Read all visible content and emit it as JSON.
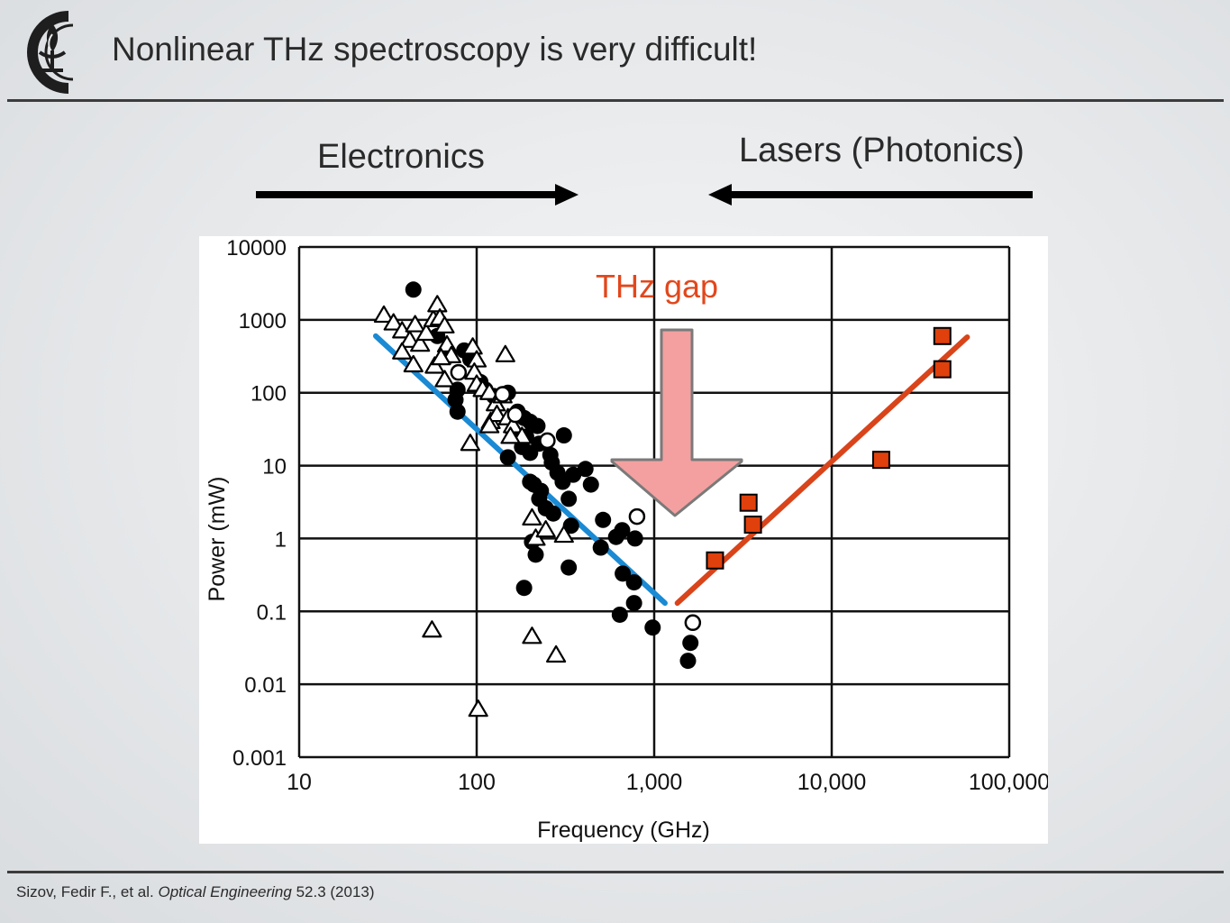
{
  "slide": {
    "title": "Nonlinear THz spectroscopy is very difficult!",
    "electronics_label": "Electronics",
    "lasers_label": "Lasers (Photonics)",
    "citation": {
      "authors": "Sizov, Fedir F., et al.",
      "journal": "Optical Engineering",
      "volume_year": "52.3 (2013)"
    },
    "logo_icon": "flame-c-logo-icon"
  },
  "colors": {
    "text": "#2a2a2a",
    "electronics_fit": "#1a8ad4",
    "photonics_fit": "#d9441a",
    "laser_marker": "#e0400c",
    "thz_gap_text": "#e2471c",
    "gap_arrow_fill": "#f4a0a0"
  },
  "chart_data": {
    "type": "scatter",
    "xlabel": "Frequency (GHz)",
    "ylabel": "Power (mW)",
    "x_scale": "log",
    "y_scale": "log",
    "xlim": [
      10,
      100000
    ],
    "ylim": [
      0.001,
      10000
    ],
    "grid": true,
    "x_tick_labels": [
      "10",
      "100",
      "1,000",
      "10,000",
      "100,000"
    ],
    "y_tick_labels": [
      "0.001",
      "0.01",
      "0.1",
      "1",
      "10",
      "100",
      "1000",
      "10000"
    ],
    "annotation": {
      "text": "THz gap",
      "arrow_points_to_frequency": 1300
    },
    "series": [
      {
        "marker": "filled-circle",
        "points": [
          [
            44,
            2600
          ],
          [
            60,
            600
          ],
          [
            70,
            320
          ],
          [
            85,
            380
          ],
          [
            92,
            290
          ],
          [
            78,
            110
          ],
          [
            76,
            80
          ],
          [
            78,
            55
          ],
          [
            105,
            140
          ],
          [
            112,
            110
          ],
          [
            125,
            90
          ],
          [
            150,
            100
          ],
          [
            170,
            55
          ],
          [
            185,
            45
          ],
          [
            200,
            40
          ],
          [
            220,
            35
          ],
          [
            160,
            30
          ],
          [
            190,
            25
          ],
          [
            225,
            20
          ],
          [
            180,
            18
          ],
          [
            200,
            15
          ],
          [
            150,
            13
          ],
          [
            260,
            14
          ],
          [
            310,
            26
          ],
          [
            265,
            11
          ],
          [
            285,
            8
          ],
          [
            350,
            7.5
          ],
          [
            305,
            6
          ],
          [
            410,
            9
          ],
          [
            440,
            5.5
          ],
          [
            210,
            5.5
          ],
          [
            230,
            4.5
          ],
          [
            200,
            6
          ],
          [
            225,
            3.5
          ],
          [
            245,
            2.6
          ],
          [
            270,
            2.2
          ],
          [
            330,
            3.5
          ],
          [
            515,
            1.8
          ],
          [
            610,
            1.05
          ],
          [
            660,
            1.3
          ],
          [
            780,
            1.0
          ],
          [
            340,
            1.5
          ],
          [
            205,
            0.9
          ],
          [
            215,
            0.6
          ],
          [
            500,
            0.75
          ],
          [
            330,
            0.4
          ],
          [
            665,
            0.33
          ],
          [
            770,
            0.25
          ],
          [
            185,
            0.21
          ],
          [
            770,
            0.13
          ],
          [
            640,
            0.09
          ],
          [
            980,
            0.06
          ],
          [
            1600,
            0.037
          ],
          [
            1550,
            0.021
          ]
        ]
      },
      {
        "marker": "open-triangle",
        "points": [
          [
            30,
            1150
          ],
          [
            34,
            900
          ],
          [
            38,
            700
          ],
          [
            42,
            520
          ],
          [
            45,
            850
          ],
          [
            48,
            460
          ],
          [
            52,
            650
          ],
          [
            57,
            1000
          ],
          [
            60,
            1600
          ],
          [
            62,
            1050
          ],
          [
            66,
            820
          ],
          [
            68,
            450
          ],
          [
            72,
            320
          ],
          [
            38,
            360
          ],
          [
            44,
            240
          ],
          [
            58,
            230
          ],
          [
            63,
            300
          ],
          [
            66,
            150
          ],
          [
            95,
            420
          ],
          [
            100,
            280
          ],
          [
            97,
            190
          ],
          [
            100,
            130
          ],
          [
            108,
            110
          ],
          [
            118,
            100
          ],
          [
            128,
            70
          ],
          [
            120,
            40
          ],
          [
            130,
            50
          ],
          [
            118,
            35
          ],
          [
            145,
            330
          ],
          [
            140,
            90
          ],
          [
            150,
            45
          ],
          [
            160,
            35
          ],
          [
            180,
            25
          ],
          [
            155,
            25
          ],
          [
            92,
            20
          ],
          [
            205,
            1.9
          ],
          [
            215,
            1.0
          ],
          [
            245,
            1.3
          ],
          [
            310,
            1.1
          ],
          [
            56,
            0.055
          ],
          [
            205,
            0.045
          ],
          [
            280,
            0.025
          ],
          [
            102,
            0.0045
          ]
        ]
      },
      {
        "marker": "open-circle",
        "points": [
          [
            79,
            190
          ],
          [
            140,
            95
          ],
          [
            165,
            50
          ],
          [
            250,
            22
          ],
          [
            800,
            2.0
          ],
          [
            1650,
            0.07
          ]
        ]
      },
      {
        "marker": "filled-square",
        "points": [
          [
            2200,
            0.5
          ],
          [
            3400,
            3.1
          ],
          [
            3600,
            1.55
          ],
          [
            19000,
            12
          ],
          [
            42000,
            600
          ],
          [
            42000,
            210
          ]
        ]
      }
    ],
    "fit_lines": [
      {
        "name": "electronics",
        "from": [
          27,
          600
        ],
        "to": [
          1150,
          0.13
        ]
      },
      {
        "name": "photonics",
        "from": [
          1350,
          0.13
        ],
        "to": [
          58000,
          580
        ]
      }
    ]
  }
}
